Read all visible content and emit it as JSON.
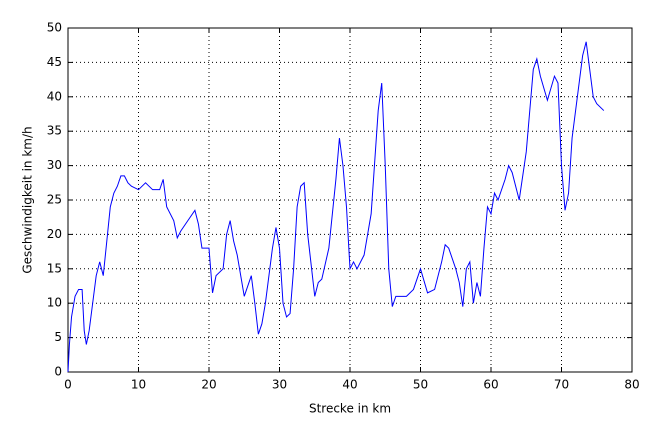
{
  "chart_data": {
    "type": "line",
    "x_label": "Strecke in km",
    "y_label": "Geschwindigkeit in km/h",
    "color": "#0000ff",
    "grid": true,
    "x": [
      0,
      0.2,
      0.5,
      1,
      1.5,
      2,
      2.3,
      2.6,
      3,
      3.5,
      4,
      4.5,
      5,
      5.5,
      6,
      6.5,
      7,
      7.5,
      8,
      8.5,
      9,
      10,
      11,
      12,
      13,
      13.5,
      14,
      15,
      15.5,
      16,
      17,
      18,
      18.5,
      19,
      20,
      20.5,
      21,
      22,
      22.5,
      23,
      23.5,
      24,
      25,
      26,
      26.5,
      27,
      27.5,
      28,
      29,
      29.5,
      30,
      30.5,
      31,
      31.5,
      32,
      32.5,
      33,
      33.5,
      34,
      35,
      35.5,
      36,
      37,
      38,
      38.5,
      39,
      39.5,
      40,
      40.5,
      41,
      42,
      43,
      44,
      44.5,
      45,
      45.5,
      46,
      46.5,
      47,
      48,
      49,
      50,
      51,
      52,
      53,
      53.5,
      54,
      55,
      55.5,
      56,
      56.5,
      57,
      57.5,
      58,
      58.5,
      59,
      59.5,
      60,
      60.5,
      61,
      62,
      62.5,
      63,
      64,
      65,
      66,
      66.5,
      67,
      68,
      69,
      69.5,
      70,
      70.5,
      71,
      71.5,
      72,
      72.5,
      73,
      73.5,
      74,
      74.5,
      75,
      76
    ],
    "values": [
      0,
      4,
      8,
      11,
      12,
      12,
      6,
      4,
      6,
      10,
      14,
      16,
      14,
      19,
      24,
      26,
      27,
      28.5,
      28.5,
      27.5,
      27,
      26.5,
      27.5,
      26.5,
      26.5,
      28,
      24,
      22,
      19.5,
      20.5,
      22,
      23.5,
      21.5,
      18,
      18,
      11.5,
      14,
      15,
      20,
      22,
      19,
      17,
      11,
      14,
      10,
      5.5,
      7,
      10,
      18,
      21,
      18,
      10,
      8,
      8.5,
      15,
      24,
      27,
      27.5,
      20,
      11,
      13,
      13.5,
      18,
      28,
      34,
      30,
      24,
      15,
      16,
      15,
      17,
      23,
      38,
      42,
      30,
      15,
      9.5,
      11,
      11,
      11,
      12,
      15,
      11.5,
      12,
      16,
      18.5,
      18,
      15,
      13,
      9.5,
      15,
      16,
      10,
      13,
      11,
      18,
      24,
      23,
      26,
      25,
      28,
      30,
      29,
      25,
      32,
      44,
      45.5,
      43,
      39.5,
      43,
      42,
      30,
      23.5,
      26,
      34,
      38,
      42,
      46,
      48,
      44,
      40,
      39,
      38
    ],
    "xlim": [
      0,
      80
    ],
    "xticks": [
      0,
      10,
      20,
      30,
      40,
      50,
      60,
      70,
      80
    ],
    "ylim": [
      0,
      50
    ],
    "yticks": [
      0,
      5,
      10,
      15,
      20,
      25,
      30,
      35,
      40,
      45,
      50
    ]
  }
}
